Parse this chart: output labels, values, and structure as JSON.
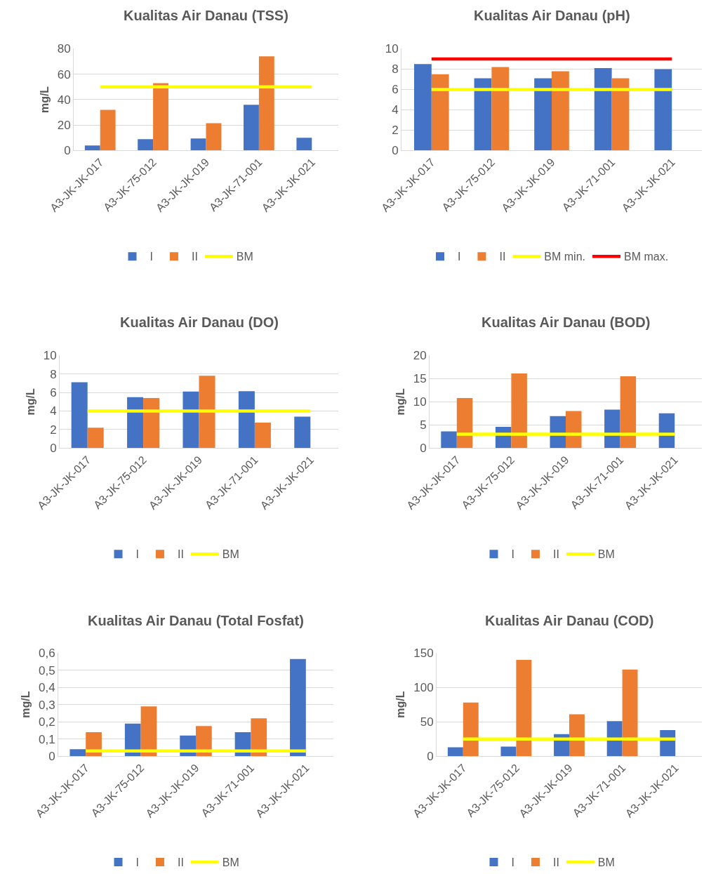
{
  "chart_data": [
    {
      "type": "bar",
      "title": "Kualitas Air Danau (TSS)",
      "ylabel": "mg/L",
      "categories": [
        "A3-JK-JK-017",
        "A3-JK-75-012",
        "A3-JK-JK-019",
        "A3-JK-71-001",
        "A3-JK-JK-021"
      ],
      "ylim": [
        0,
        80
      ],
      "yticks": [
        0,
        20,
        40,
        60,
        80
      ],
      "grid": "y",
      "legend": "bottom",
      "series": [
        {
          "name": "I",
          "color": "#4472c4",
          "values": [
            4,
            9,
            9.5,
            36,
            10
          ]
        },
        {
          "name": "II",
          "color": "#ed7d31",
          "values": [
            32,
            53,
            21.5,
            74,
            null
          ]
        },
        {
          "name": "BM",
          "type": "line",
          "color": "#ffff00",
          "values": [
            50,
            50,
            50,
            50,
            50
          ]
        }
      ]
    },
    {
      "type": "bar",
      "title": "Kualitas Air Danau (pH)",
      "categories": [
        "A3-JK-JK-017",
        "A3-JK-75-012",
        "A3-JK-JK-019",
        "A3-JK-71-001",
        "A3-JK-JK-021"
      ],
      "ylim": [
        0,
        10
      ],
      "yticks": [
        0,
        2,
        4,
        6,
        8,
        10
      ],
      "grid": "y",
      "legend": "bottom",
      "series": [
        {
          "name": "I",
          "color": "#4472c4",
          "values": [
            8.5,
            7.1,
            7.1,
            8.1,
            8.0
          ]
        },
        {
          "name": "II",
          "color": "#ed7d31",
          "values": [
            7.5,
            8.2,
            7.8,
            7.1,
            null
          ]
        },
        {
          "name": "BM min.",
          "type": "line",
          "color": "#ffff00",
          "values": [
            6,
            6,
            6,
            6,
            6
          ]
        },
        {
          "name": "BM max.",
          "type": "line",
          "color": "#ff0000",
          "values": [
            9,
            9,
            9,
            9,
            9
          ]
        }
      ]
    },
    {
      "type": "bar",
      "title": "Kualitas Air Danau (DO)",
      "ylabel": "mg/L",
      "categories": [
        "A3-JK-JK-017",
        "A3-JK-75-012",
        "A3-JK-JK-019",
        "A3-JK-71-001",
        "A3-JK-JK-021"
      ],
      "ylim": [
        0,
        10
      ],
      "yticks": [
        0,
        2,
        4,
        6,
        8,
        10
      ],
      "grid": "y",
      "legend": "bottom",
      "series": [
        {
          "name": "I",
          "color": "#4472c4",
          "values": [
            7.1,
            5.5,
            6.1,
            6.15,
            3.4
          ]
        },
        {
          "name": "II",
          "color": "#ed7d31",
          "values": [
            2.2,
            5.4,
            7.8,
            2.75,
            null
          ]
        },
        {
          "name": "BM",
          "type": "line",
          "color": "#ffff00",
          "values": [
            4,
            4,
            4,
            4,
            4
          ]
        }
      ]
    },
    {
      "type": "bar",
      "title": "Kualitas Air Danau (BOD)",
      "ylabel": "mg/L",
      "categories": [
        "A3-JK-JK-017",
        "A3-JK-75-012",
        "A3-JK-JK-019",
        "A3-JK-71-001",
        "A3-JK-JK-021"
      ],
      "ylim": [
        0,
        20
      ],
      "yticks": [
        0,
        5,
        10,
        15,
        20
      ],
      "grid": "y",
      "legend": "bottom",
      "series": [
        {
          "name": "I",
          "color": "#4472c4",
          "values": [
            3.6,
            4.6,
            6.9,
            8.3,
            7.5
          ]
        },
        {
          "name": "II",
          "color": "#ed7d31",
          "values": [
            10.8,
            16.1,
            8,
            15.5,
            null
          ]
        },
        {
          "name": "BM",
          "type": "line",
          "color": "#ffff00",
          "values": [
            3,
            3,
            3,
            3,
            3
          ]
        }
      ]
    },
    {
      "type": "bar",
      "title": "Kualitas Air Danau (Total Fosfat)",
      "ylabel": "mg/L",
      "categories": [
        "A3-JK-JK-017",
        "A3-JK-75-012",
        "A3-JK-JK-019",
        "A3-JK-71-001",
        "A3-JK-JK-021"
      ],
      "ylim": [
        0,
        0.6
      ],
      "yticks": [
        0,
        {
          "value": 0.1,
          "label": "0,1"
        },
        {
          "value": 0.2,
          "label": "0,2"
        },
        {
          "value": 0.3,
          "label": "0,3"
        },
        {
          "value": 0.4,
          "label": "0,4"
        },
        {
          "value": 0.5,
          "label": "0,5"
        },
        {
          "value": 0.6,
          "label": "0,6"
        }
      ],
      "grid": "y",
      "legend": "bottom",
      "series": [
        {
          "name": "I",
          "color": "#4472c4",
          "values": [
            0.04,
            0.19,
            0.12,
            0.14,
            0.565
          ]
        },
        {
          "name": "II",
          "color": "#ed7d31",
          "values": [
            0.14,
            0.29,
            0.175,
            0.22,
            null
          ]
        },
        {
          "name": "BM",
          "type": "line",
          "color": "#ffff00",
          "values": [
            0.03,
            0.03,
            0.03,
            0.03,
            0.03
          ]
        }
      ]
    },
    {
      "type": "bar",
      "title": "Kualitas Air Danau (COD)",
      "ylabel": "mg/L",
      "categories": [
        "A3-JK-JK-017",
        "A3-JK-75-012",
        "A3-JK-JK-019",
        "A3-JK-71-001",
        "A3-JK-JK-021"
      ],
      "ylim": [
        0,
        150
      ],
      "yticks": [
        0,
        50,
        100,
        150
      ],
      "grid": "y",
      "legend": "bottom",
      "series": [
        {
          "name": "I",
          "color": "#4472c4",
          "values": [
            13,
            14,
            32,
            51,
            38
          ]
        },
        {
          "name": "II",
          "color": "#ed7d31",
          "values": [
            78,
            140,
            61,
            126,
            null
          ]
        },
        {
          "name": "BM",
          "type": "line",
          "color": "#ffff00",
          "values": [
            25,
            25,
            25,
            25,
            25
          ]
        }
      ]
    }
  ]
}
